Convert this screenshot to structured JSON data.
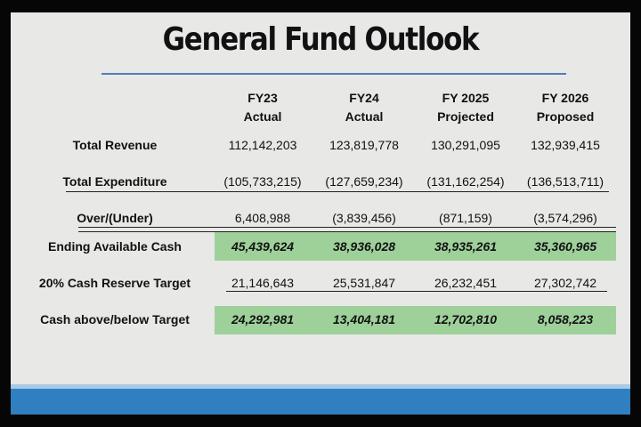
{
  "title": "General Fund Outlook",
  "columns": [
    {
      "line1": "FY23",
      "line2": "Actual"
    },
    {
      "line1": "FY24",
      "line2": "Actual"
    },
    {
      "line1": "FY 2025",
      "line2": "Projected"
    },
    {
      "line1": "FY 2026",
      "line2": "Proposed"
    }
  ],
  "rows": [
    {
      "label": "Total Revenue",
      "values": [
        "112,142,203",
        "123,819,778",
        "130,291,095",
        "132,939,415"
      ]
    },
    {
      "label": "Total Expenditure",
      "values": [
        "(105,733,215)",
        "(127,659,234)",
        "(131,162,254)",
        "(136,513,711)"
      ]
    },
    {
      "label": "Over/(Under)",
      "values": [
        "6,408,988",
        "(3,839,456)",
        "(871,159)",
        "(3,574,296)"
      ]
    },
    {
      "label": "Ending Available Cash",
      "values": [
        "45,439,624",
        "38,936,028",
        "38,935,261",
        "35,360,965"
      ]
    },
    {
      "label": "20% Cash Reserve Target",
      "values": [
        "21,146,643",
        "25,531,847",
        "26,232,451",
        "27,302,742"
      ]
    },
    {
      "label": "Cash above/below Target",
      "values": [
        "24,292,981",
        "13,404,181",
        "12,702,810",
        "8,058,223"
      ]
    }
  ],
  "highlight_color": "#9ed09a",
  "accent_color": "#2f7fc1"
}
